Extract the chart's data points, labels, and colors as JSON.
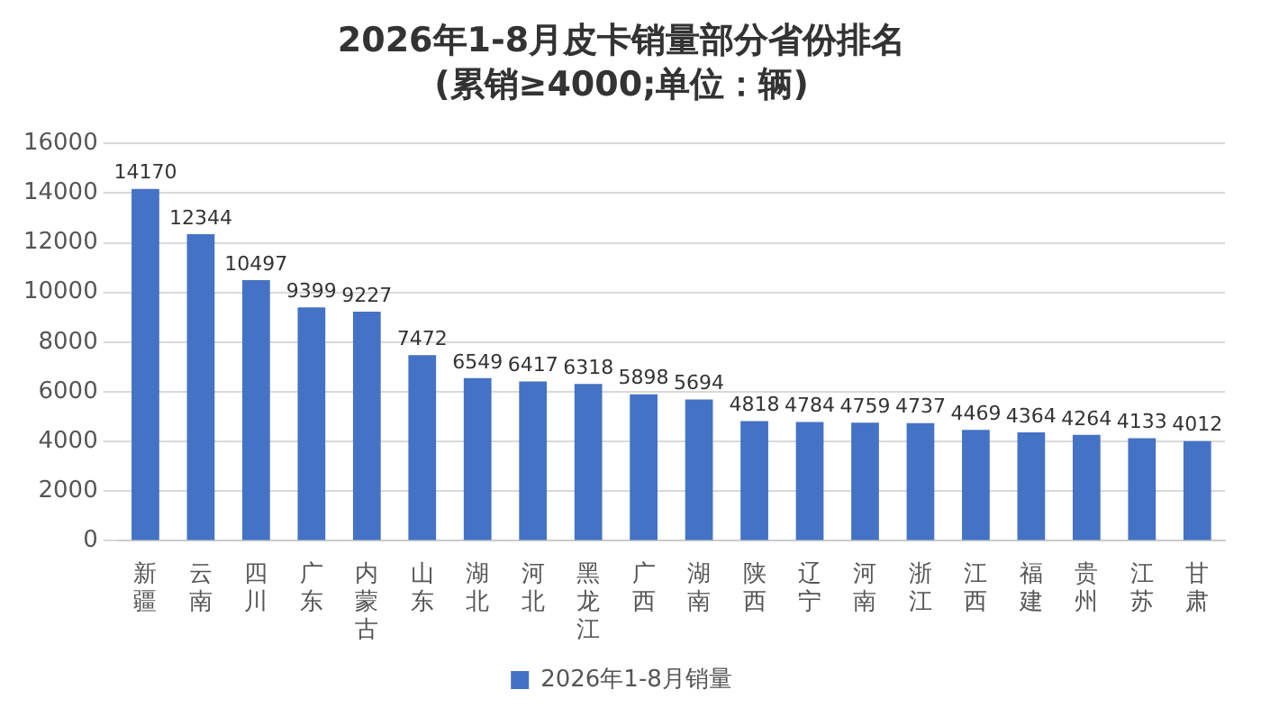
{
  "chart_data": {
    "type": "bar",
    "title": "2026年1-8月皮卡销量部分省份排名",
    "subtitle": "(累销≥4000;单位：辆)",
    "categories": [
      "新疆",
      "云南",
      "四川",
      "广东",
      "内蒙古",
      "山东",
      "湖北",
      "河北",
      "黑龙江",
      "广西",
      "湖南",
      "陕西",
      "辽宁",
      "河南",
      "浙江",
      "江西",
      "福建",
      "贵州",
      "江苏",
      "甘肃"
    ],
    "series": [
      {
        "name": "2026年1-8月销量",
        "color": "#4472c4",
        "values": [
          14170,
          12344,
          10497,
          9399,
          9227,
          7472,
          6549,
          6417,
          6318,
          5898,
          5694,
          4818,
          4784,
          4759,
          4737,
          4469,
          4364,
          4264,
          4133,
          4012
        ]
      }
    ],
    "ylim": [
      0,
      16000
    ],
    "yticks": [
      0,
      2000,
      4000,
      6000,
      8000,
      10000,
      12000,
      14000,
      16000
    ],
    "grid": "y",
    "legend": "bottom",
    "data_labels": true
  }
}
